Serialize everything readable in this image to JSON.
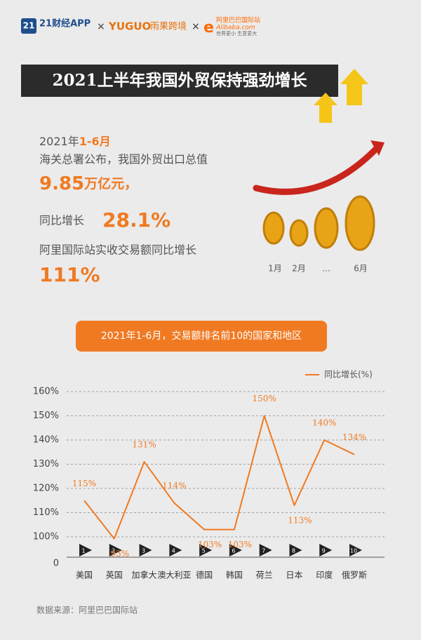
{
  "header": {
    "logo_number": "21",
    "logo_name": "21财经APP",
    "times_1": "×",
    "brand_2": "YUGUO",
    "brand_2_cn": "雨果跨境",
    "times_2": "×",
    "brand_3_cn": "阿里巴巴国际站",
    "brand_3": "Alibaba.com",
    "brand_3_slogan": "世界更小 生意更大"
  },
  "title": "2021上半年我国外贸保持强劲增长",
  "stats": {
    "period_year": "2021年",
    "period_months": "1-6月",
    "line_1": "海关总署公布，我国外贸出口总值",
    "export_value": "9.85",
    "export_unit": "万亿元，",
    "growth_label": "同比增长",
    "growth_value": "28.1%",
    "alibaba_label": "阿里国际站实收交易额同比增长",
    "alibaba_value": "111%"
  },
  "coin_labels": [
    "1月",
    "2月",
    "…",
    "6月"
  ],
  "chart_data": {
    "type": "line",
    "title": "2021年1-6月，交易额排名前10的国家和地区",
    "categories": [
      "美国",
      "英国",
      "加拿大",
      "澳大利亚",
      "德国",
      "韩国",
      "荷兰",
      "日本",
      "印度",
      "俄罗斯"
    ],
    "ranks": [
      "1",
      "2",
      "3",
      "4",
      "5",
      "6",
      "7",
      "8",
      "9",
      "10"
    ],
    "series": [
      {
        "name": "同比增长(%)",
        "color": "#f07a22",
        "values": [
          115,
          93,
          131,
          114,
          103,
          103,
          150,
          113,
          140,
          134
        ],
        "value_labels": [
          "115%",
          "93%",
          "131%",
          "114%",
          "103%",
          "103%",
          "150%",
          "113%",
          "140%",
          "134%"
        ]
      }
    ],
    "ylim": [
      0,
      160
    ],
    "yticks": [
      0,
      {
        "value": 100,
        "label": "100%"
      },
      {
        "value": 110,
        "label": "110%"
      },
      {
        "value": 120,
        "label": "120%"
      },
      {
        "value": 130,
        "label": "130%"
      },
      {
        "value": 140,
        "label": "140%"
      },
      {
        "value": 150,
        "label": "150%"
      },
      {
        "value": 160,
        "label": "160%"
      }
    ],
    "axis_break": true,
    "grid": true,
    "legend": "top-right"
  },
  "source": "数据来源：阿里巴巴国际站"
}
